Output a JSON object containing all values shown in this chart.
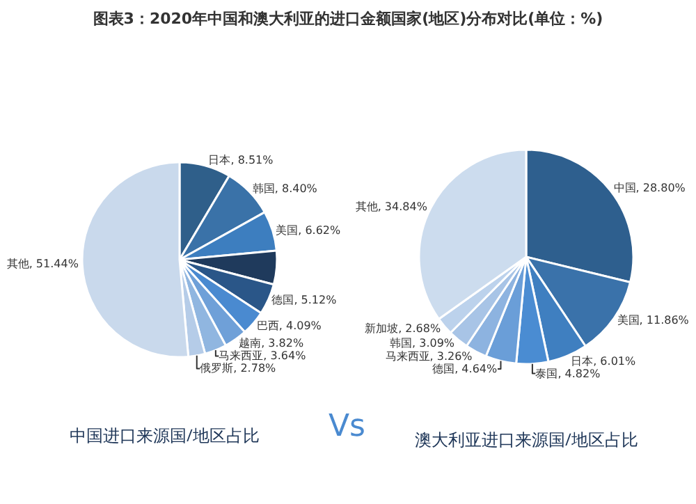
{
  "chart_data": [
    {
      "type": "pie",
      "title": "图表3：2020年中国和澳大利亚的进口金额国家(地区)分布对比(单位：%)",
      "annotations": [
        "中国进口来源国/地区占比",
        "Vs"
      ],
      "categories": [
        "日本",
        "韩国",
        "美国",
        null,
        "德国",
        "巴西",
        "越南",
        "马来西亚",
        "俄罗斯",
        "其他"
      ],
      "values": [
        8.51,
        8.4,
        6.62,
        5.58,
        5.12,
        4.09,
        3.82,
        3.64,
        2.78,
        51.44
      ],
      "value_labels": [
        "8.51%",
        "8.40%",
        "6.62%",
        null,
        "5.12%",
        "4.09%",
        "3.82%",
        "3.64%",
        "2.78%",
        "51.44%"
      ],
      "colors": [
        "#2f5f8a",
        "#3a72a8",
        "#3d7ebf",
        "#1f3a5c",
        "#2a5688",
        "#4a8ad0",
        "#6fa0d8",
        "#90b6e0",
        "#b5cce8",
        "#c9d9ec"
      ],
      "legend": false
    },
    {
      "type": "pie",
      "annotations": [
        "澳大利亚进口来源国/地区占比"
      ],
      "categories": [
        "中国",
        "美国",
        "日本",
        "泰国",
        "德国",
        "马来西亚",
        "韩国",
        "新加坡",
        "其他"
      ],
      "values": [
        28.8,
        11.86,
        6.01,
        4.82,
        4.64,
        3.26,
        3.09,
        2.68,
        34.84
      ],
      "value_labels": [
        "28.80%",
        "11.86%",
        "6.01%",
        "4.82%",
        "4.64%",
        "3.26%",
        "3.09%",
        "2.68%",
        "34.84%"
      ],
      "colors": [
        "#2e5f8e",
        "#3a72aa",
        "#3f7fc0",
        "#4a8cd2",
        "#6a9ed8",
        "#8db3e0",
        "#a8c4e6",
        "#bcd2ec",
        "#ccdcee"
      ],
      "legend": false
    }
  ]
}
